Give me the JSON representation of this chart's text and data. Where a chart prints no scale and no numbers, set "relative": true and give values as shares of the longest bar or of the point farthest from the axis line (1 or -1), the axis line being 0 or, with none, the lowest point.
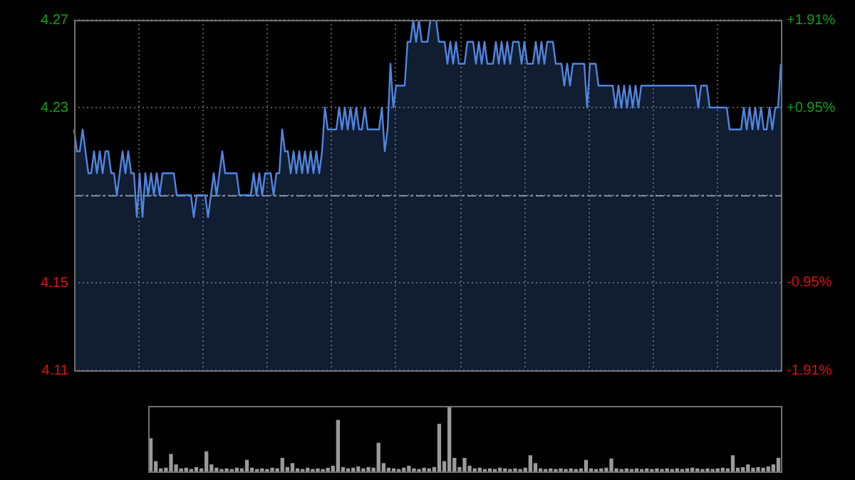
{
  "chart_data": [
    {
      "type": "area",
      "legend": false,
      "grid": true,
      "line_style": "solid",
      "categories": [
        null,
        null,
        null,
        null,
        null,
        null,
        null,
        null,
        null,
        null,
        null,
        null,
        null,
        null,
        null,
        null,
        null,
        null,
        null,
        null,
        null,
        null,
        null,
        null,
        null,
        null,
        null,
        null,
        null,
        null,
        null,
        null,
        null,
        null,
        null,
        null,
        null,
        null,
        null,
        null,
        null,
        null,
        null,
        null,
        null,
        null,
        null,
        null,
        null,
        null,
        null,
        null,
        null,
        null,
        null,
        null,
        null,
        null,
        null,
        null,
        null,
        null,
        null,
        null,
        null,
        null,
        null,
        null,
        null,
        null,
        null,
        null,
        null,
        null,
        null,
        null,
        null,
        null,
        null,
        null,
        null,
        null,
        null,
        null,
        null,
        null,
        null,
        null,
        null,
        null,
        null,
        null,
        null,
        null,
        null,
        null,
        null,
        null,
        null,
        null,
        null,
        null,
        null,
        null,
        null,
        null,
        null,
        null,
        null,
        null,
        null,
        null,
        null,
        null,
        null,
        null,
        null,
        null,
        null,
        null,
        null,
        null,
        null,
        null,
        null,
        null,
        null,
        null,
        null,
        null,
        null,
        null,
        null,
        null,
        null,
        null,
        null,
        null,
        null,
        null,
        null,
        null,
        null,
        null,
        null,
        null,
        null,
        null,
        null,
        null,
        null,
        null,
        null,
        null,
        null,
        null,
        null,
        null,
        null,
        null,
        null,
        null,
        null,
        null,
        null,
        null,
        null,
        null,
        null,
        null,
        null,
        null,
        null,
        null,
        null,
        null,
        null,
        null,
        null,
        null,
        null,
        null,
        null,
        null,
        null,
        null,
        null,
        null,
        null,
        null,
        null,
        null,
        null,
        null,
        null,
        null,
        null,
        null,
        null,
        null,
        null,
        null,
        null,
        null,
        null,
        null,
        null,
        null,
        null,
        null,
        null,
        null,
        null,
        null,
        null,
        null,
        null,
        null,
        null,
        null,
        null,
        null,
        null,
        null,
        null,
        null,
        null,
        null,
        null,
        null,
        null,
        null,
        null,
        null,
        null,
        null,
        null,
        null,
        null,
        null,
        null,
        null,
        null,
        null,
        null,
        null,
        null,
        null,
        null
      ],
      "series": [
        {
          "color": "#4f86e0",
          "values": [
            4.22,
            4.21,
            4.21,
            4.22,
            4.21,
            4.2,
            4.2,
            4.21,
            4.2,
            4.21,
            4.2,
            4.21,
            4.21,
            4.2,
            4.2,
            4.19,
            4.2,
            4.21,
            4.2,
            4.21,
            4.2,
            4.2,
            4.18,
            4.2,
            4.18,
            4.2,
            4.19,
            4.2,
            4.19,
            4.2,
            4.19,
            4.2,
            4.2,
            4.2,
            4.2,
            4.2,
            4.19,
            4.19,
            4.19,
            4.19,
            4.19,
            4.19,
            4.18,
            4.19,
            4.19,
            4.19,
            4.19,
            4.18,
            4.19,
            4.2,
            4.19,
            4.2,
            4.21,
            4.2,
            4.2,
            4.2,
            4.2,
            4.2,
            4.19,
            4.19,
            4.19,
            4.19,
            4.19,
            4.2,
            4.19,
            4.2,
            4.19,
            4.2,
            4.2,
            4.2,
            4.19,
            4.2,
            4.2,
            4.22,
            4.21,
            4.21,
            4.2,
            4.21,
            4.2,
            4.21,
            4.2,
            4.21,
            4.2,
            4.21,
            4.2,
            4.21,
            4.2,
            4.21,
            4.23,
            4.22,
            4.22,
            4.22,
            4.22,
            4.23,
            4.22,
            4.23,
            4.22,
            4.23,
            4.22,
            4.23,
            4.22,
            4.22,
            4.23,
            4.22,
            4.22,
            4.22,
            4.22,
            4.22,
            4.23,
            4.21,
            4.22,
            4.25,
            4.23,
            4.24,
            4.24,
            4.24,
            4.24,
            4.26,
            4.26,
            4.27,
            4.26,
            4.27,
            4.26,
            4.26,
            4.26,
            4.27,
            4.27,
            4.27,
            4.26,
            4.26,
            4.26,
            4.25,
            4.26,
            4.25,
            4.26,
            4.25,
            4.25,
            4.25,
            4.26,
            4.26,
            4.26,
            4.25,
            4.26,
            4.25,
            4.26,
            4.25,
            4.25,
            4.25,
            4.26,
            4.25,
            4.26,
            4.25,
            4.26,
            4.25,
            4.26,
            4.26,
            4.26,
            4.25,
            4.26,
            4.25,
            4.25,
            4.25,
            4.26,
            4.25,
            4.26,
            4.25,
            4.26,
            4.26,
            4.26,
            4.25,
            4.25,
            4.25,
            4.24,
            4.25,
            4.24,
            4.25,
            4.25,
            4.25,
            4.25,
            4.25,
            4.23,
            4.25,
            4.25,
            4.25,
            4.24,
            4.24,
            4.24,
            4.24,
            4.24,
            4.24,
            4.23,
            4.24,
            4.23,
            4.24,
            4.23,
            4.24,
            4.23,
            4.24,
            4.23,
            4.24,
            4.24,
            4.24,
            4.24,
            4.24,
            4.24,
            4.24,
            4.24,
            4.24,
            4.24,
            4.24,
            4.24,
            4.24,
            4.24,
            4.24,
            4.24,
            4.24,
            4.24,
            4.24,
            4.24,
            4.23,
            4.24,
            4.24,
            4.24,
            4.23,
            4.23,
            4.23,
            4.23,
            4.23,
            4.23,
            4.23,
            4.22,
            4.22,
            4.22,
            4.22,
            4.22,
            4.23,
            4.22,
            4.23,
            4.22,
            4.23,
            4.22,
            4.23,
            4.22,
            4.22,
            4.23,
            4.22,
            4.23,
            4.23,
            4.25
          ]
        }
      ],
      "ylim": [
        4.11,
        4.27
      ],
      "yticks": [
        4.27,
        4.23,
        {
          "value": 4.19,
          "label": null
        },
        4.15,
        4.11
      ],
      "y2lim": [
        -1.91,
        1.91
      ],
      "y2ticks": [
        {
          "value": 1.91,
          "label": "+1.91%"
        },
        {
          "value": 0.95,
          "label": "+0.95%"
        },
        {
          "value": -0.95,
          "label": "-0.95%"
        },
        {
          "value": -1.91,
          "label": "-1.91%"
        }
      ],
      "ref_lines": [
        {
          "axis": "y",
          "value": 4.19,
          "color": "#8a8a8a",
          "line_style": "dashed"
        }
      ]
    },
    {
      "type": "bar",
      "relative": true,
      "legend": false,
      "categories": [
        null,
        null,
        null,
        null,
        null,
        null,
        null,
        null,
        null,
        null,
        null,
        null,
        null,
        null,
        null,
        null,
        null,
        null,
        null,
        null,
        null,
        null,
        null,
        null,
        null,
        null,
        null,
        null,
        null,
        null,
        null,
        null,
        null,
        null,
        null,
        null,
        null,
        null,
        null,
        null,
        null,
        null,
        null,
        null,
        null,
        null,
        null,
        null,
        null,
        null,
        null,
        null,
        null,
        null,
        null,
        null,
        null,
        null,
        null,
        null,
        null,
        null,
        null,
        null,
        null,
        null,
        null,
        null,
        null,
        null,
        null,
        null,
        null,
        null,
        null,
        null,
        null,
        null,
        null,
        null,
        null,
        null,
        null,
        null,
        null,
        null,
        null,
        null,
        null,
        null,
        null,
        null,
        null,
        null,
        null,
        null,
        null,
        null,
        null,
        null,
        null,
        null,
        null,
        null,
        null,
        null,
        null,
        null,
        null,
        null,
        null,
        null,
        null,
        null,
        null,
        null,
        null,
        null,
        null,
        null,
        null,
        null,
        null,
        null,
        null
      ],
      "series": [
        {
          "color": "#9a9a9a",
          "values": [
            0.5,
            0.15,
            0.04,
            0.05,
            0.26,
            0.1,
            0.04,
            0.05,
            0.03,
            0.06,
            0.04,
            0.3,
            0.1,
            0.05,
            0.03,
            0.04,
            0.03,
            0.05,
            0.04,
            0.17,
            0.05,
            0.03,
            0.04,
            0.03,
            0.05,
            0.04,
            0.2,
            0.06,
            0.12,
            0.04,
            0.03,
            0.05,
            0.03,
            0.04,
            0.03,
            0.05,
            0.08,
            0.78,
            0.06,
            0.04,
            0.05,
            0.07,
            0.04,
            0.06,
            0.05,
            0.43,
            0.12,
            0.05,
            0.04,
            0.03,
            0.05,
            0.08,
            0.04,
            0.03,
            0.05,
            0.04,
            0.06,
            0.72,
            0.15,
            1,
            0.2,
            0.06,
            0.2,
            0.08,
            0.04,
            0.05,
            0.03,
            0.04,
            0.03,
            0.05,
            0.04,
            0.03,
            0.04,
            0.03,
            0.05,
            0.24,
            0.12,
            0.04,
            0.03,
            0.04,
            0.03,
            0.04,
            0.03,
            0.04,
            0.03,
            0.04,
            0.17,
            0.04,
            0.03,
            0.04,
            0.05,
            0.19,
            0.04,
            0.03,
            0.04,
            0.03,
            0.04,
            0.03,
            0.04,
            0.03,
            0.04,
            0.03,
            0.04,
            0.03,
            0.04,
            0.03,
            0.04,
            0.05,
            0.04,
            0.03,
            0.04,
            0.03,
            0.04,
            0.05,
            0.04,
            0.24,
            0.05,
            0.06,
            0.1,
            0.05,
            0.06,
            0.05,
            0.07,
            0.1,
            0.2
          ]
        }
      ]
    }
  ]
}
